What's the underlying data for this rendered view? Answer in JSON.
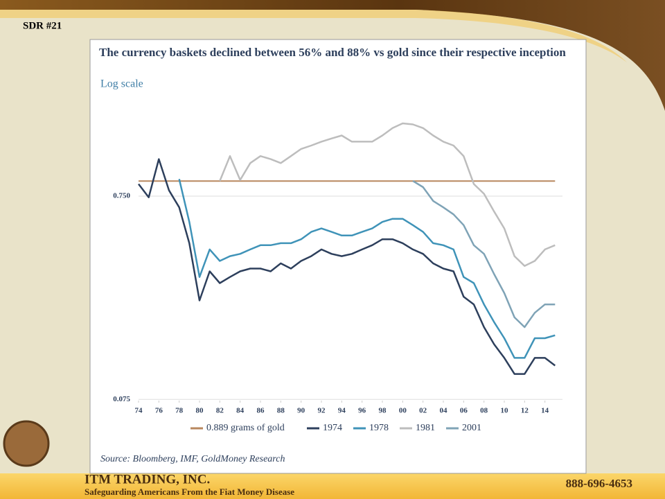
{
  "slide": {
    "label": "SDR #21",
    "company": "ITM TRADING, INC.",
    "tagline": "Safeguarding Americans From the Fiat Money Disease",
    "phone": "888-696-4653"
  },
  "chart_data": {
    "type": "line",
    "title": "The currency baskets declined between 56% and 88% vs gold since their respective inception",
    "subtitle": "Log scale",
    "source": "Source: Bloomberg, IMF, GoldMoney Research",
    "logy": true,
    "x": [
      1974,
      1975,
      1976,
      1977,
      1978,
      1979,
      1980,
      1981,
      1982,
      1983,
      1984,
      1985,
      1986,
      1987,
      1988,
      1989,
      1990,
      1991,
      1992,
      1993,
      1994,
      1995,
      1996,
      1997,
      1998,
      1999,
      2000,
      2001,
      2002,
      2003,
      2004,
      2005,
      2006,
      2007,
      2008,
      2009,
      2010,
      2011,
      2012,
      2013,
      2014,
      2015
    ],
    "xlim": [
      1974,
      2016
    ],
    "xticks": [
      {
        "value": 1974,
        "label": "74"
      },
      {
        "value": 1976,
        "label": "76"
      },
      {
        "value": 1978,
        "label": "78"
      },
      {
        "value": 1980,
        "label": "80"
      },
      {
        "value": 1982,
        "label": "82"
      },
      {
        "value": 1984,
        "label": "84"
      },
      {
        "value": 1986,
        "label": "86"
      },
      {
        "value": 1988,
        "label": "88"
      },
      {
        "value": 1990,
        "label": "90"
      },
      {
        "value": 1992,
        "label": "92"
      },
      {
        "value": 1994,
        "label": "94"
      },
      {
        "value": 1996,
        "label": "96"
      },
      {
        "value": 1998,
        "label": "98"
      },
      {
        "value": 2000,
        "label": "00"
      },
      {
        "value": 2002,
        "label": "02"
      },
      {
        "value": 2004,
        "label": "04"
      },
      {
        "value": 2006,
        "label": "06"
      },
      {
        "value": 2008,
        "label": "08"
      },
      {
        "value": 2010,
        "label": "10"
      },
      {
        "value": 2012,
        "label": "12"
      },
      {
        "value": 2014,
        "label": "14"
      }
    ],
    "ylim": [
      0.074,
      2.0
    ],
    "yticks": [
      {
        "value": 0.75,
        "label": "0.750"
      },
      0.075
    ],
    "grid": true,
    "series": [
      {
        "name": "0.889 grams of gold",
        "color": "#b8875e",
        "values": [
          0.889,
          0.889,
          0.889,
          0.889,
          0.889,
          0.889,
          0.889,
          0.889,
          0.889,
          0.889,
          0.889,
          0.889,
          0.889,
          0.889,
          0.889,
          0.889,
          0.889,
          0.889,
          0.889,
          0.889,
          0.889,
          0.889,
          0.889,
          0.889,
          0.889,
          0.889,
          0.889,
          0.889,
          0.889,
          0.889,
          0.889,
          0.889,
          0.889,
          0.889,
          0.889,
          0.889,
          0.889,
          0.889,
          0.889,
          0.889,
          0.889,
          0.889
        ]
      },
      {
        "name": "1974",
        "color": "#2d3f5c",
        "values": [
          0.86,
          0.74,
          1.14,
          0.8,
          0.66,
          0.44,
          0.23,
          0.32,
          0.28,
          0.3,
          0.32,
          0.33,
          0.33,
          0.32,
          0.35,
          0.33,
          0.36,
          0.38,
          0.41,
          0.39,
          0.38,
          0.39,
          0.41,
          0.43,
          0.46,
          0.46,
          0.44,
          0.41,
          0.39,
          0.35,
          0.33,
          0.32,
          0.24,
          0.22,
          0.17,
          0.14,
          0.12,
          0.1,
          0.1,
          0.12,
          0.12,
          0.11
        ]
      },
      {
        "name": "1978",
        "color": "#3f93b8",
        "values": [
          null,
          null,
          null,
          null,
          0.91,
          0.56,
          0.3,
          0.41,
          0.36,
          0.38,
          0.39,
          0.41,
          0.43,
          0.43,
          0.44,
          0.44,
          0.46,
          0.5,
          0.52,
          0.5,
          0.48,
          0.48,
          0.5,
          0.52,
          0.56,
          0.58,
          0.58,
          0.54,
          0.5,
          0.44,
          0.43,
          0.41,
          0.3,
          0.28,
          0.22,
          0.18,
          0.15,
          0.12,
          0.12,
          0.15,
          0.15,
          0.155
        ]
      },
      {
        "name": "1981",
        "color": "#bdbdbd",
        "values": [
          null,
          null,
          null,
          null,
          null,
          null,
          null,
          null,
          0.89,
          1.18,
          0.9,
          1.09,
          1.18,
          1.14,
          1.09,
          1.18,
          1.28,
          1.33,
          1.39,
          1.44,
          1.49,
          1.39,
          1.39,
          1.39,
          1.49,
          1.62,
          1.71,
          1.69,
          1.62,
          1.49,
          1.39,
          1.33,
          1.18,
          0.86,
          0.77,
          0.63,
          0.52,
          0.38,
          0.34,
          0.36,
          0.41,
          0.43
        ]
      },
      {
        "name": "2001",
        "color": "#7fa3b6",
        "values": [
          null,
          null,
          null,
          null,
          null,
          null,
          null,
          null,
          null,
          null,
          null,
          null,
          null,
          null,
          null,
          null,
          null,
          null,
          null,
          null,
          null,
          null,
          null,
          null,
          null,
          null,
          null,
          0.89,
          0.83,
          0.71,
          0.66,
          0.61,
          0.54,
          0.43,
          0.39,
          0.31,
          0.25,
          0.19,
          0.17,
          0.2,
          0.22,
          0.22
        ]
      }
    ]
  }
}
